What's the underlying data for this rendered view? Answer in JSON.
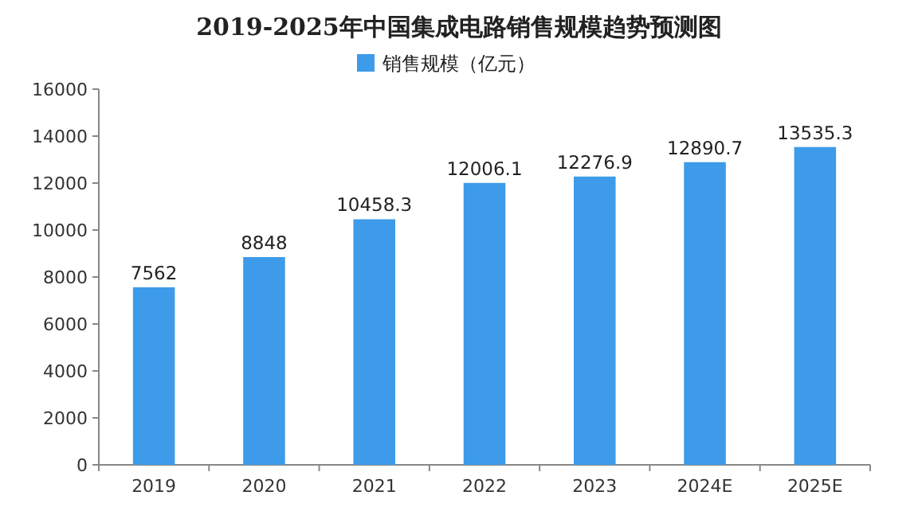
{
  "chart_data": {
    "type": "bar",
    "title": "2019-2025年中国集成电路销售规模趋势预测图",
    "categories": [
      "2019",
      "2020",
      "2021",
      "2022",
      "2023",
      "2024E",
      "2025E"
    ],
    "series": [
      {
        "name": "销售规模（亿元）",
        "color": "#3d9be9",
        "values": [
          7562,
          8848,
          10458.3,
          12006.1,
          12276.9,
          12890.7,
          13535.3
        ]
      }
    ],
    "ylim": [
      0,
      16000
    ],
    "yticks": [
      0,
      2000,
      4000,
      6000,
      8000,
      10000,
      12000,
      14000,
      16000
    ],
    "data_labels": true,
    "legend": "top"
  }
}
